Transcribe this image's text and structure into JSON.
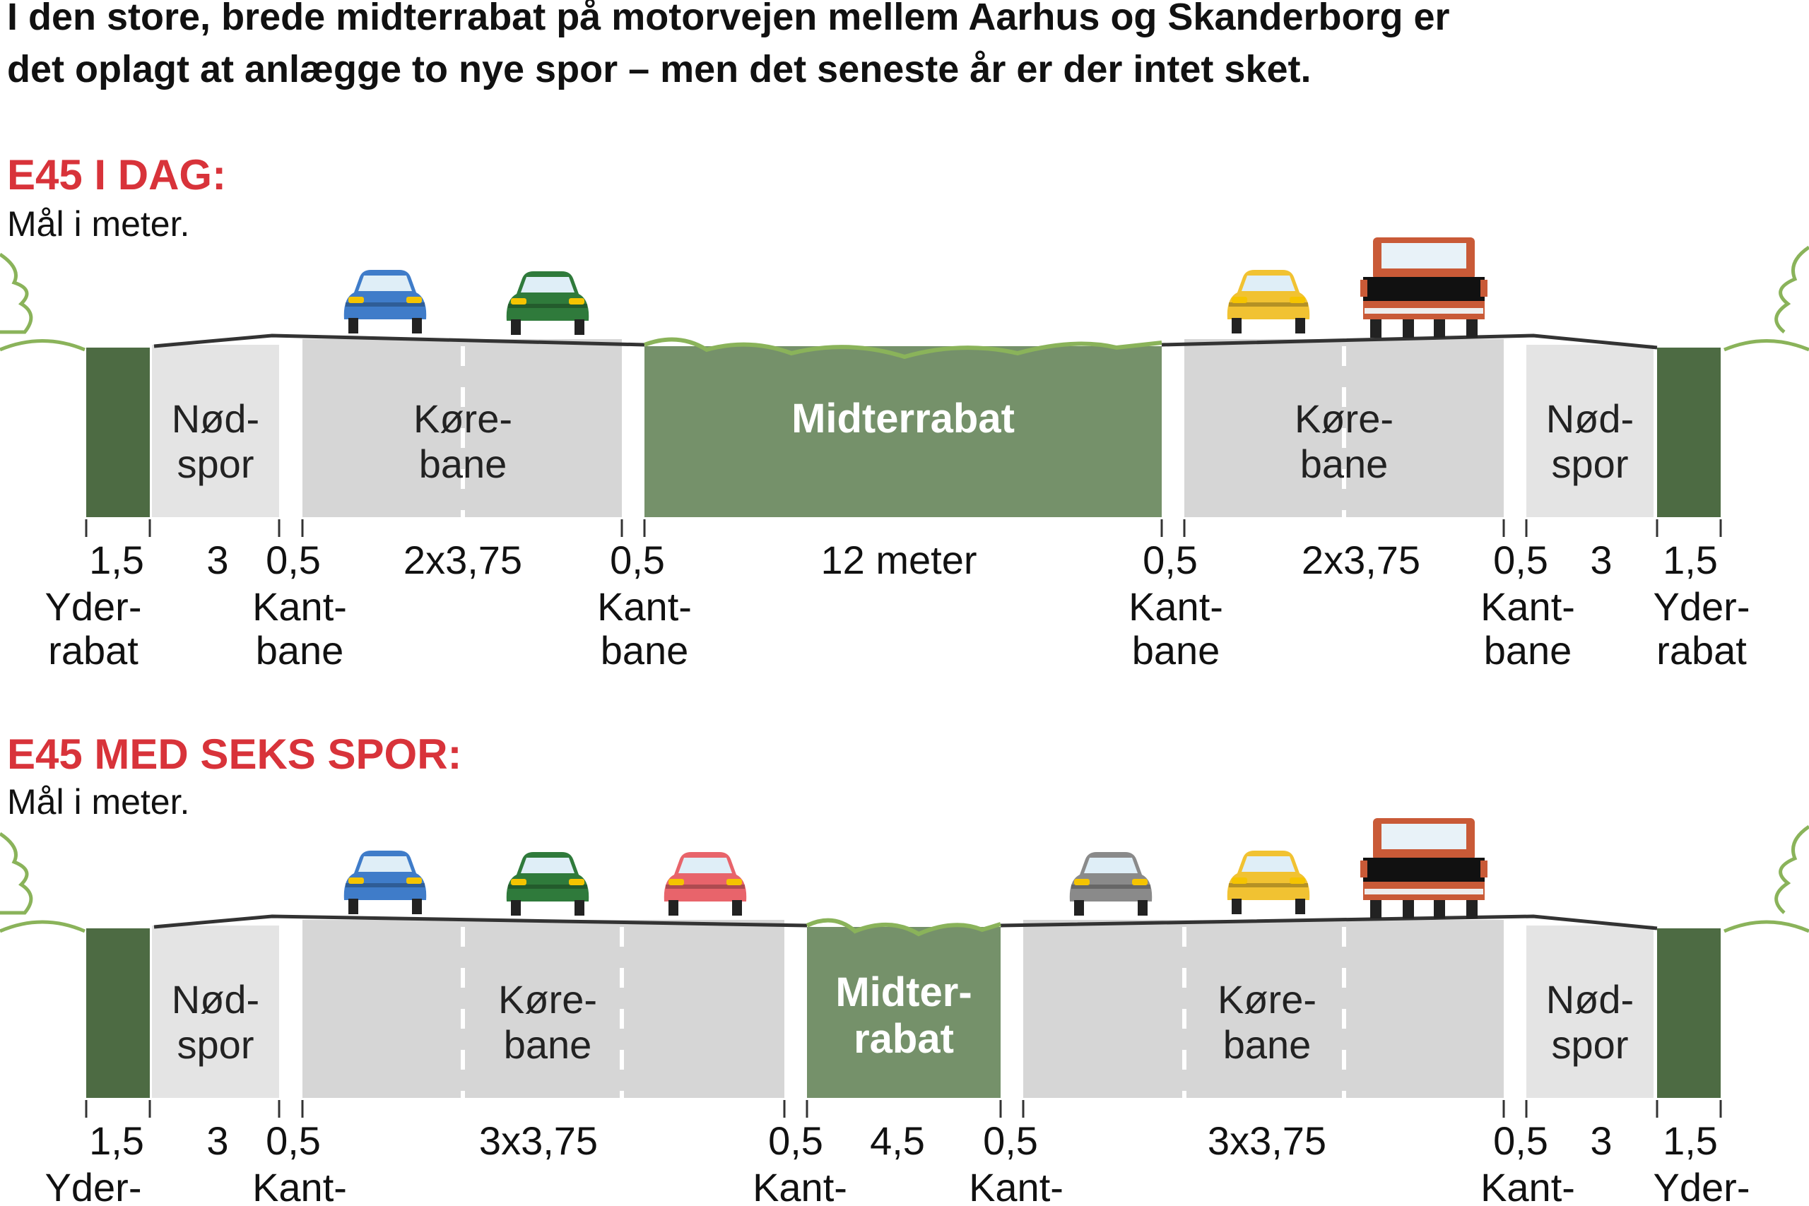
{
  "intro": {
    "line1": "I den store, brede midterrabat på motorvejen mellem Aarhus og Skanderborg er",
    "line2": "det oplagt at anlægge to nye spor – men det seneste år er der intet sket."
  },
  "colors": {
    "green": "#75916a",
    "dark_green": "#4d6b43",
    "grass_line": "#8ab35a",
    "lane_gray": "#d6d6d6",
    "shoulder_gray": "#e4e4e4",
    "title_red": "#d8333a"
  },
  "today": {
    "title": "E45 I DAG:",
    "subtitle": "Mål i meter.",
    "labels": {
      "nod_left_1": "Nød-",
      "nod_left_2": "spor",
      "kore_left_1": "Køre-",
      "kore_left_2": "bane",
      "median": "Midterrabat",
      "kore_right_1": "Køre-",
      "kore_right_2": "bane",
      "nod_right_1": "Nød-",
      "nod_right_2": "spor"
    },
    "dims": {
      "d1": "1,5",
      "d2": "3",
      "d3": "0,5",
      "d4": "2x3,75",
      "d5": "0,5",
      "d6": "12 meter",
      "d7": "0,5",
      "d8": "2x3,75",
      "d9": "0,5",
      "d10": "3",
      "d11": "1,5"
    },
    "names": {
      "yder_l_1": "Yder-",
      "yder_l_2": "rabat",
      "kant1_1": "Kant-",
      "kant1_2": "bane",
      "kant2_1": "Kant-",
      "kant2_2": "bane",
      "kant3_1": "Kant-",
      "kant3_2": "bane",
      "kant4_1": "Kant-",
      "kant4_2": "bane",
      "yder_r_1": "Yder-",
      "yder_r_2": "rabat"
    }
  },
  "six": {
    "title": "E45 MED SEKS SPOR:",
    "subtitle": "Mål i meter.",
    "labels": {
      "nod_left_1": "Nød-",
      "nod_left_2": "spor",
      "kore_left_1": "Køre-",
      "kore_left_2": "bane",
      "median_1": "Midter-",
      "median_2": "rabat",
      "kore_right_1": "Køre-",
      "kore_right_2": "bane",
      "nod_right_1": "Nød-",
      "nod_right_2": "spor"
    },
    "dims": {
      "d1": "1,5",
      "d2": "3",
      "d3": "0,5",
      "d4": "3x3,75",
      "d5": "0,5",
      "d6": "4,5",
      "d7": "0,5",
      "d8": "3x3,75",
      "d9": "0,5",
      "d10": "3",
      "d11": "1,5"
    },
    "names": {
      "yder_l_1": "Yder-",
      "kant1_1": "Kant-",
      "kant2_1": "Kant-",
      "kant3_1": "Kant-",
      "kant4_1": "Kant-",
      "yder_r_1": "Yder-"
    }
  }
}
